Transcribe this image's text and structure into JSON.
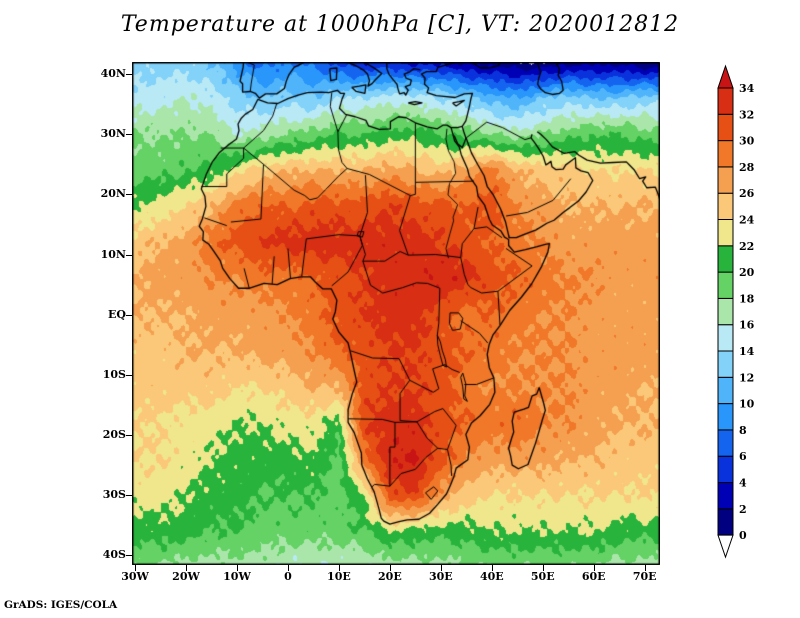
{
  "figure": {
    "credit": "GrADS: IGES/COLA"
  },
  "chart_data": {
    "type": "heatmap",
    "title": "Temperature at 1000hPa [C], VT: 2020012812",
    "variable": "Temperature",
    "units": "C",
    "lat_ticks": [
      "40N",
      "30N",
      "20N",
      "10N",
      "EQ",
      "10S",
      "20S",
      "30S",
      "40S"
    ],
    "lat_tick_degrees": [
      40,
      30,
      20,
      10,
      0,
      -10,
      -20,
      -30,
      -40
    ],
    "lon_ticks": [
      "30W",
      "20W",
      "10W",
      "0",
      "10E",
      "20E",
      "30E",
      "40E",
      "50E",
      "60E",
      "70E"
    ],
    "lon_tick_degrees": [
      -30,
      -20,
      -10,
      0,
      10,
      20,
      30,
      40,
      50,
      60,
      70
    ],
    "extent": {
      "lon_min": -30.6,
      "lon_max": 73,
      "lat_min": -41.6,
      "lat_max": 42
    },
    "colorbar": {
      "levels": [
        0,
        2,
        4,
        6,
        8,
        10,
        12,
        14,
        16,
        18,
        20,
        22,
        24,
        26,
        28,
        30,
        32,
        34
      ],
      "band_colors": [
        "#000080",
        "#0000b4",
        "#0a32dc",
        "#1464f0",
        "#2896fa",
        "#50b4fa",
        "#82d2fa",
        "#b9e9f5",
        "#aae6aa",
        "#64d264",
        "#28b43c",
        "#f0e68c",
        "#fac878",
        "#f5a050",
        "#f07828",
        "#e65014",
        "#d72e14"
      ],
      "under_color": "#ffffff",
      "over_color": "#c81414"
    },
    "grid": {
      "lons": [
        -30,
        -25,
        -20,
        -15,
        -10,
        -5,
        0,
        5,
        10,
        15,
        20,
        25,
        30,
        35,
        40,
        45,
        50,
        55,
        60,
        65,
        70,
        75
      ],
      "lats": [
        42,
        36,
        30,
        24,
        18,
        12,
        6,
        0,
        -6,
        -12,
        -18,
        -24,
        -30,
        -36,
        -42
      ],
      "values": [
        [
          13,
          13,
          13,
          12,
          9,
          7,
          8,
          7,
          5,
          4,
          4,
          3,
          3,
          1,
          1,
          0,
          0,
          1,
          1,
          1,
          0,
          0
        ],
        [
          15,
          15,
          16,
          15,
          13,
          12,
          13,
          12,
          14,
          14,
          15,
          15,
          14,
          13,
          11,
          10,
          12,
          13,
          12,
          12,
          13,
          13
        ],
        [
          18,
          18,
          18,
          18,
          16,
          17,
          18,
          19,
          20,
          20,
          21,
          21,
          20,
          19,
          18,
          17,
          18,
          19,
          20,
          20,
          19,
          19
        ],
        [
          19,
          19,
          20,
          21,
          23,
          25,
          26,
          26,
          26,
          26,
          27,
          26,
          25,
          27,
          29,
          26,
          25,
          25,
          24,
          24,
          24,
          24
        ],
        [
          22,
          23,
          24,
          26,
          29,
          30,
          30,
          31,
          31,
          31,
          32,
          31,
          31,
          30,
          31,
          28,
          27,
          26,
          26,
          26,
          26,
          26
        ],
        [
          25,
          26,
          27,
          29,
          31,
          32,
          33,
          33,
          33,
          33,
          33,
          33,
          32,
          31,
          30,
          29,
          28,
          27,
          27,
          27,
          27,
          27
        ],
        [
          26,
          27,
          27,
          28,
          28,
          29,
          29,
          30,
          31,
          32,
          33,
          33,
          34,
          33,
          31,
          30,
          29,
          28,
          28,
          27,
          27,
          27
        ],
        [
          26,
          26,
          26,
          27,
          27,
          27,
          28,
          29,
          31,
          32,
          33,
          33,
          31,
          29,
          30,
          29,
          28,
          28,
          27,
          27,
          27,
          27
        ],
        [
          25,
          25,
          26,
          26,
          26,
          27,
          27,
          28,
          30,
          31,
          32,
          32,
          31,
          30,
          29,
          28,
          28,
          28,
          27,
          27,
          27,
          27
        ],
        [
          25,
          25,
          25,
          25,
          24,
          24,
          25,
          26,
          26,
          31,
          32,
          32,
          31,
          29,
          28,
          28,
          28,
          28,
          27,
          27,
          26,
          26
        ],
        [
          24,
          24,
          23,
          23,
          22,
          22,
          23,
          23,
          21,
          32,
          33,
          33,
          31,
          30,
          29,
          30,
          28,
          28,
          27,
          26,
          26,
          26
        ],
        [
          24,
          24,
          23,
          22,
          21,
          21,
          21,
          22,
          19,
          29,
          34,
          34,
          31,
          28,
          27,
          27,
          27,
          26,
          26,
          25,
          25,
          25
        ],
        [
          23,
          23,
          22,
          21,
          21,
          20,
          20,
          20,
          19,
          22,
          31,
          32,
          27,
          25,
          24,
          24,
          24,
          24,
          24,
          24,
          24,
          24
        ],
        [
          21,
          21,
          21,
          20,
          20,
          19,
          19,
          19,
          19,
          20,
          22,
          21,
          21,
          21,
          22,
          22,
          22,
          22,
          22,
          21,
          21,
          21
        ],
        [
          18,
          18,
          17,
          17,
          17,
          17,
          16,
          16,
          16,
          16,
          17,
          17,
          17,
          18,
          18,
          18,
          18,
          18,
          18,
          17,
          17,
          17
        ]
      ]
    }
  }
}
